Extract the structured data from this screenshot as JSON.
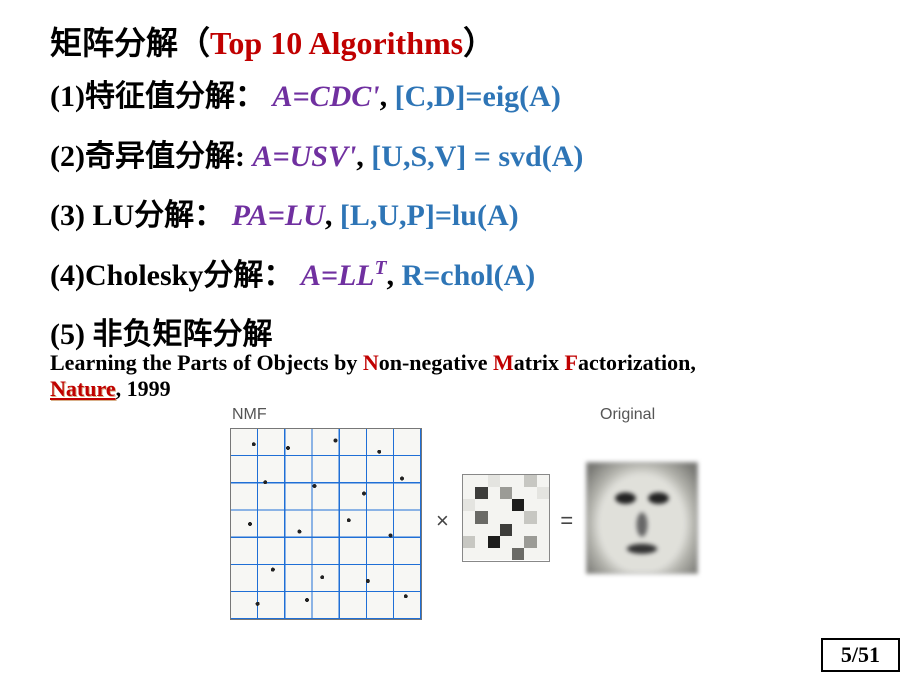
{
  "title": {
    "prefix": "矩阵分解（",
    "highlight": "Top 10 Algorithms",
    "suffix": "）"
  },
  "items": [
    {
      "label": "(1)特征值分解：",
      "equation": "A=CDC'",
      "sep": ", ",
      "code": "[C,D]=eig(A)"
    },
    {
      "label": "(2)奇异值分解:",
      "equation": "A=USV'",
      "sep": ", ",
      "code": "[U,S,V] = svd(A)"
    },
    {
      "label": "(3) LU分解：",
      "equation": "PA=LU",
      "sep": ", ",
      "code": "[L,U,P]=lu(A)"
    },
    {
      "label": "(4)Cholesky分解：",
      "equation_html": "A=LL<sup>T</sup>",
      "sep": ", ",
      "code": "  R=chol(A)"
    }
  ],
  "item5": {
    "label": "(5) 非负矩阵分解"
  },
  "citation": {
    "pre": "Learning the Parts of Objects by ",
    "N": "N",
    "part1": "on-negative ",
    "M": "M",
    "part2": "atrix ",
    "F": "F",
    "part3": "actorization",
    "comma": ",",
    "journal": "Nature",
    "year": ", 1999"
  },
  "figure": {
    "nmf_label": "NMF",
    "orig_label": "Original",
    "times": "×",
    "equals": "=",
    "grid_divisions": 7,
    "grid_line_color": "#1f6fd6",
    "grid_bg": "#f7f7f4",
    "weights_size": 7,
    "weight_palette": [
      "#f4f4f1",
      "#e4e4e0",
      "#c7c7c2",
      "#9b9b96",
      "#6a6a66",
      "#3d3d3b",
      "#1d1d1c"
    ],
    "weight_cells": [
      0,
      0,
      1,
      0,
      0,
      2,
      0,
      0,
      5,
      0,
      3,
      0,
      0,
      1,
      1,
      0,
      0,
      0,
      6,
      0,
      0,
      0,
      4,
      0,
      0,
      0,
      2,
      0,
      0,
      0,
      0,
      5,
      0,
      0,
      0,
      2,
      0,
      6,
      0,
      0,
      3,
      0,
      0,
      0,
      0,
      0,
      4,
      0,
      0
    ]
  },
  "page": {
    "num": "5",
    "total": "51"
  },
  "colors": {
    "red": "#c00000",
    "purple": "#7030a0",
    "blue": "#2e75b6",
    "black": "#000000"
  }
}
